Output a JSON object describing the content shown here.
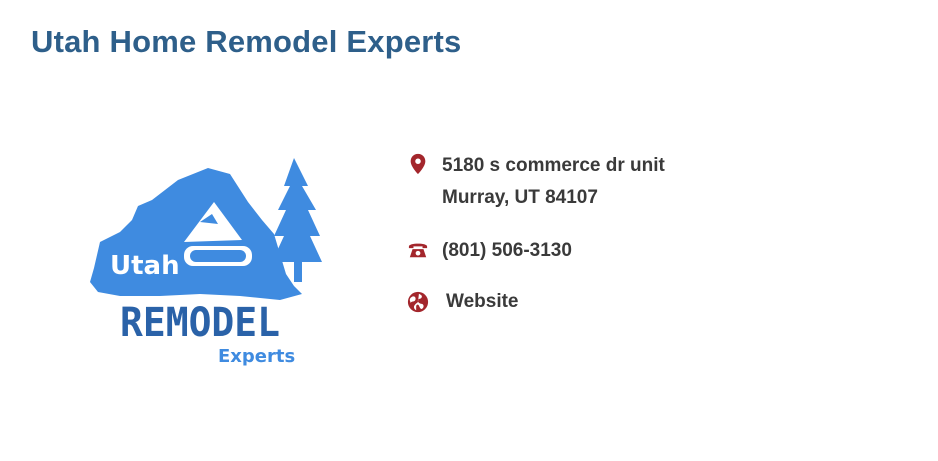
{
  "business": {
    "name": "Utah Home Remodel Experts"
  },
  "logo": {
    "line1": "Utah",
    "line2": "REMODEL",
    "line3": "Experts",
    "color_light": "#3f8be0",
    "color_dark": "#2a62a8"
  },
  "contact": {
    "address_line1": "5180 s commerce dr unit",
    "address_line2": "Murray, UT 84107",
    "phone": "(801) 506-3130",
    "website_label": "Website"
  },
  "icons": {
    "address": "map-pin-icon",
    "phone": "phone-icon",
    "website": "globe-icon"
  },
  "colors": {
    "title": "#2e5f8a",
    "icon": "#a3262c",
    "text": "#3a3a3a"
  }
}
